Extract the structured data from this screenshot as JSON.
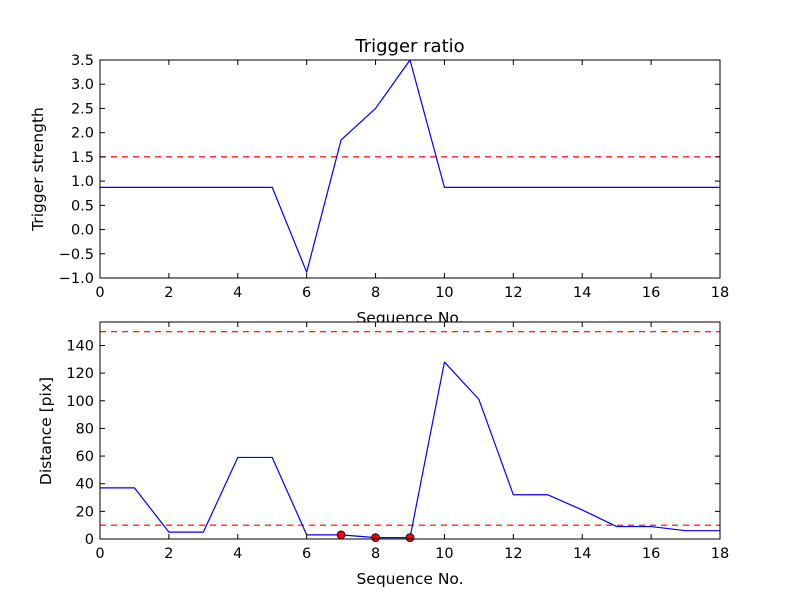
{
  "chart_data": [
    {
      "type": "line",
      "title": "Trigger ratio",
      "xlabel": "Sequence No.",
      "ylabel": "Trigger strength",
      "xlim": [
        0,
        18
      ],
      "ylim": [
        -1.0,
        3.5
      ],
      "xticks": [
        0,
        2,
        4,
        6,
        8,
        10,
        12,
        14,
        16,
        18
      ],
      "xtick_labels": [
        "0",
        "2",
        "4",
        "6",
        "8",
        "10",
        "12",
        "14",
        "16",
        "18"
      ],
      "yticks": [
        -1.0,
        -0.5,
        0.0,
        0.5,
        1.0,
        1.5,
        2.0,
        2.5,
        3.0,
        3.5
      ],
      "ytick_labels": [
        "−1.0",
        "−0.5",
        "0.0",
        "0.5",
        "1.0",
        "1.5",
        "2.0",
        "2.5",
        "3.0",
        "3.5"
      ],
      "grid": false,
      "series": [
        {
          "style": "line",
          "color": "#0000ff",
          "x": [
            0,
            1,
            2,
            3,
            4,
            5,
            6,
            7,
            8,
            9,
            10,
            11,
            12,
            13,
            14,
            15,
            16,
            17,
            18
          ],
          "y": [
            0.87,
            0.87,
            0.87,
            0.87,
            0.87,
            0.87,
            -0.88,
            1.85,
            2.5,
            3.5,
            0.87,
            0.87,
            0.87,
            0.87,
            0.87,
            0.87,
            0.87,
            0.87,
            0.87
          ]
        }
      ],
      "hlines": [
        {
          "y": 1.5,
          "color": "#ff0000",
          "style": "dashed"
        }
      ]
    },
    {
      "type": "line",
      "title": "",
      "xlabel": "Sequence No.",
      "ylabel": "Distance [pix]",
      "xlim": [
        0,
        18
      ],
      "ylim": [
        0,
        157
      ],
      "xticks": [
        0,
        2,
        4,
        6,
        8,
        10,
        12,
        14,
        16,
        18
      ],
      "xtick_labels": [
        "0",
        "2",
        "4",
        "6",
        "8",
        "10",
        "12",
        "14",
        "16",
        "18"
      ],
      "yticks": [
        0,
        20,
        40,
        60,
        80,
        100,
        120,
        140
      ],
      "ytick_labels": [
        "0",
        "20",
        "40",
        "60",
        "80",
        "100",
        "120",
        "140"
      ],
      "grid": false,
      "series": [
        {
          "style": "line",
          "color": "#0000ff",
          "x": [
            0,
            1,
            2,
            3,
            4,
            5,
            6,
            7,
            8,
            9,
            10,
            11,
            12,
            13,
            14,
            15,
            16,
            17,
            18
          ],
          "y": [
            37,
            37,
            5,
            5,
            59,
            59,
            3,
            3,
            1,
            1,
            128,
            101,
            32,
            32,
            21,
            9,
            9,
            6,
            6
          ]
        },
        {
          "style": "markers",
          "color": "#ff0000",
          "x": [
            7,
            8,
            9
          ],
          "y": [
            3,
            1,
            1
          ]
        }
      ],
      "hlines": [
        {
          "y": 150,
          "color": "#ff0000",
          "style": "dashed"
        },
        {
          "y": 10,
          "color": "#ff0000",
          "style": "dashed"
        }
      ]
    }
  ]
}
